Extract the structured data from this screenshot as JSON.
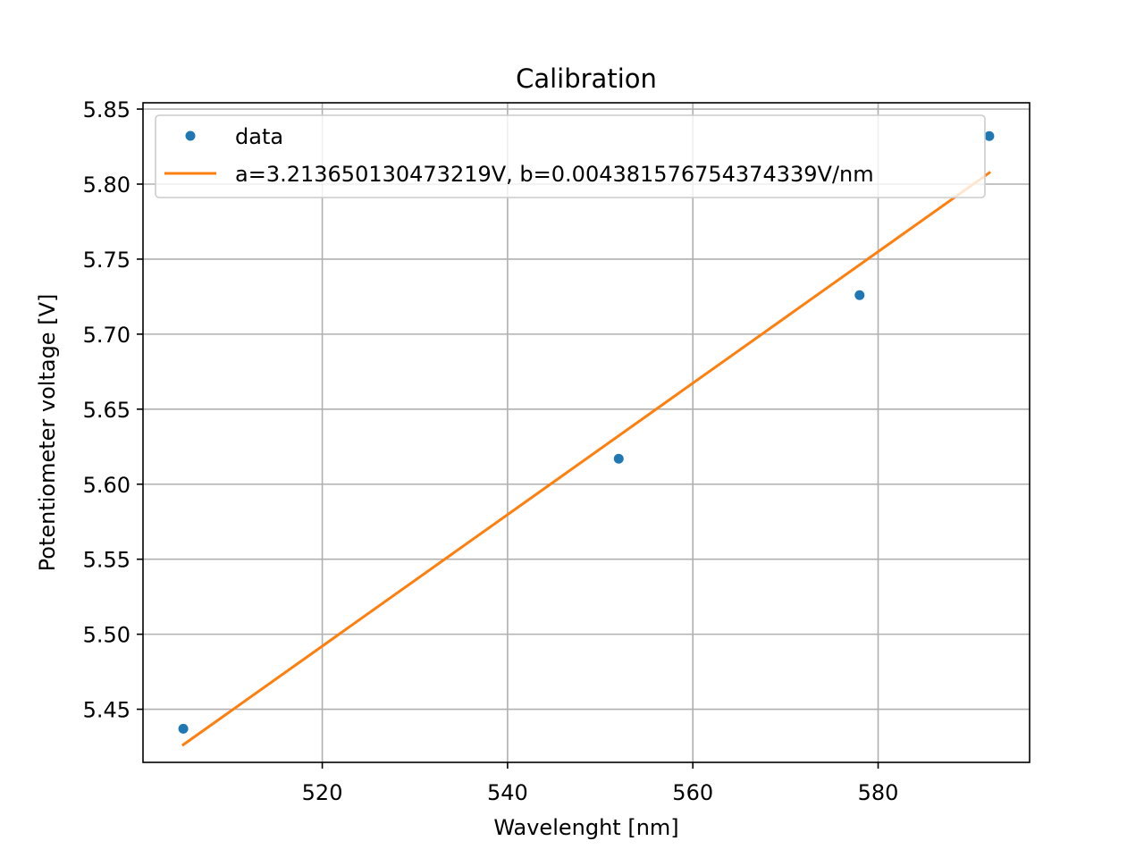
{
  "chart_data": {
    "type": "scatter",
    "title": "Calibration",
    "xlabel": "Wavelenght [nm]",
    "ylabel": "Potentiometer voltage [V]",
    "xlim": [
      500.65,
      596.35
    ],
    "ylim": [
      5.4146,
      5.8542
    ],
    "xticks": [
      520,
      540,
      560,
      580
    ],
    "xtick_labels": [
      "520",
      "540",
      "560",
      "580"
    ],
    "yticks": [
      5.45,
      5.5,
      5.55,
      5.6,
      5.65,
      5.7,
      5.75,
      5.8,
      5.85
    ],
    "ytick_labels": [
      "5.45",
      "5.50",
      "5.55",
      "5.60",
      "5.65",
      "5.70",
      "5.75",
      "5.80",
      "5.85"
    ],
    "grid": true,
    "legend_position": "top-left",
    "series": [
      {
        "name": "data",
        "kind": "points",
        "color": "#1f77b4",
        "points": [
          {
            "x": 505,
            "y": 5.437
          },
          {
            "x": 552,
            "y": 5.617
          },
          {
            "x": 578,
            "y": 5.726
          },
          {
            "x": 592,
            "y": 5.832
          }
        ]
      },
      {
        "name": "a=3.213650130473219V, b=0.004381576754374339V/nm",
        "kind": "line",
        "color": "#ff7f0e",
        "intercept": 3.213650130473219,
        "slope": 0.004381576754374339,
        "x_range": [
          505,
          592
        ]
      }
    ]
  }
}
